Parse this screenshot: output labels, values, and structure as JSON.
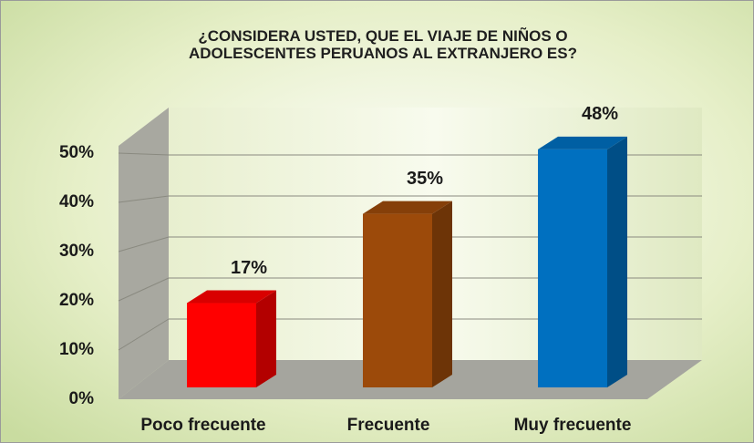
{
  "chart_data": {
    "type": "bar3d",
    "title": "¿CONSIDERA USTED, QUE EL VIAJE DE NIÑOS O ADOLESCENTES PERUANOS AL EXTRANJERO ES?",
    "categories": [
      "Poco frecuente",
      "Frecuente",
      "Muy frecuente"
    ],
    "values": [
      17,
      35,
      48
    ],
    "value_labels": [
      "17%",
      "35%",
      "48%"
    ],
    "colors": [
      "#ff0000",
      "#9c4a0a",
      "#0070c0"
    ],
    "ylim": [
      0,
      50
    ],
    "yticks": [
      {
        "value": 0,
        "label": "0%"
      },
      {
        "value": 10,
        "label": "10%"
      },
      {
        "value": 20,
        "label": "20%"
      },
      {
        "value": 30,
        "label": "30%"
      },
      {
        "value": 40,
        "label": "40%"
      },
      {
        "value": 50,
        "label": "50%"
      }
    ],
    "grid": true
  }
}
